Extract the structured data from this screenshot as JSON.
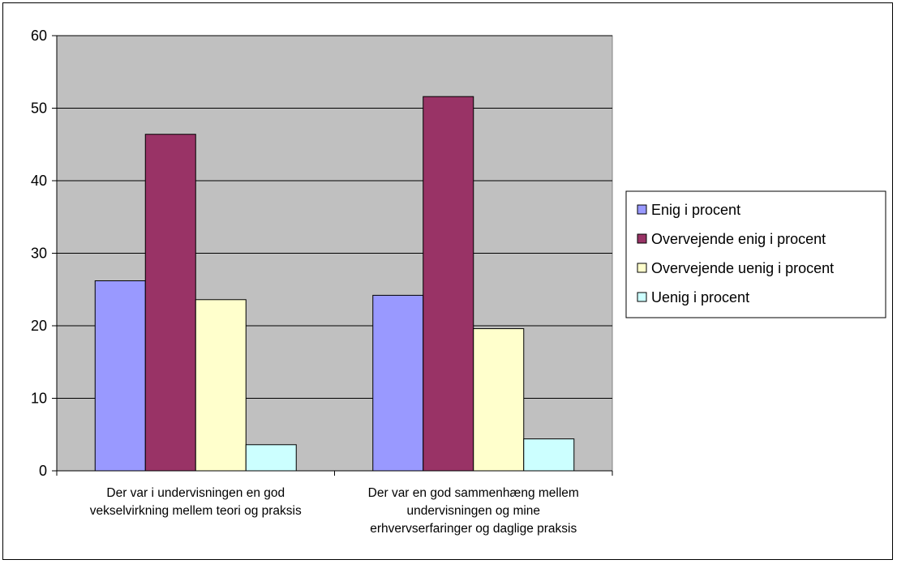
{
  "chart_data": {
    "type": "bar",
    "title": "",
    "xlabel": "",
    "ylabel": "",
    "ylim": [
      0,
      60
    ],
    "yticks": [
      0,
      10,
      20,
      30,
      40,
      50,
      60
    ],
    "grid": true,
    "legend_position": "right",
    "plot_background": "#C0C0C0",
    "categories": [
      [
        "Der var i undervisningen en god",
        "vekselvirkning mellem teori og praksis"
      ],
      [
        "Der var en god sammenhæng mellem",
        "undervisningen og mine",
        "erhvervserfaringer og daglige praksis"
      ]
    ],
    "series": [
      {
        "name": "Enig i procent",
        "color": "#9999FF",
        "values": [
          26.2,
          24.2
        ]
      },
      {
        "name": "Overvejende enig i procent",
        "color": "#993366",
        "values": [
          46.4,
          51.6
        ]
      },
      {
        "name": "Overvejende uenig i procent",
        "color": "#FFFFCC",
        "values": [
          23.6,
          19.6
        ]
      },
      {
        "name": "Uenig i procent",
        "color": "#CCFFFF",
        "values": [
          3.6,
          4.4
        ]
      }
    ]
  }
}
